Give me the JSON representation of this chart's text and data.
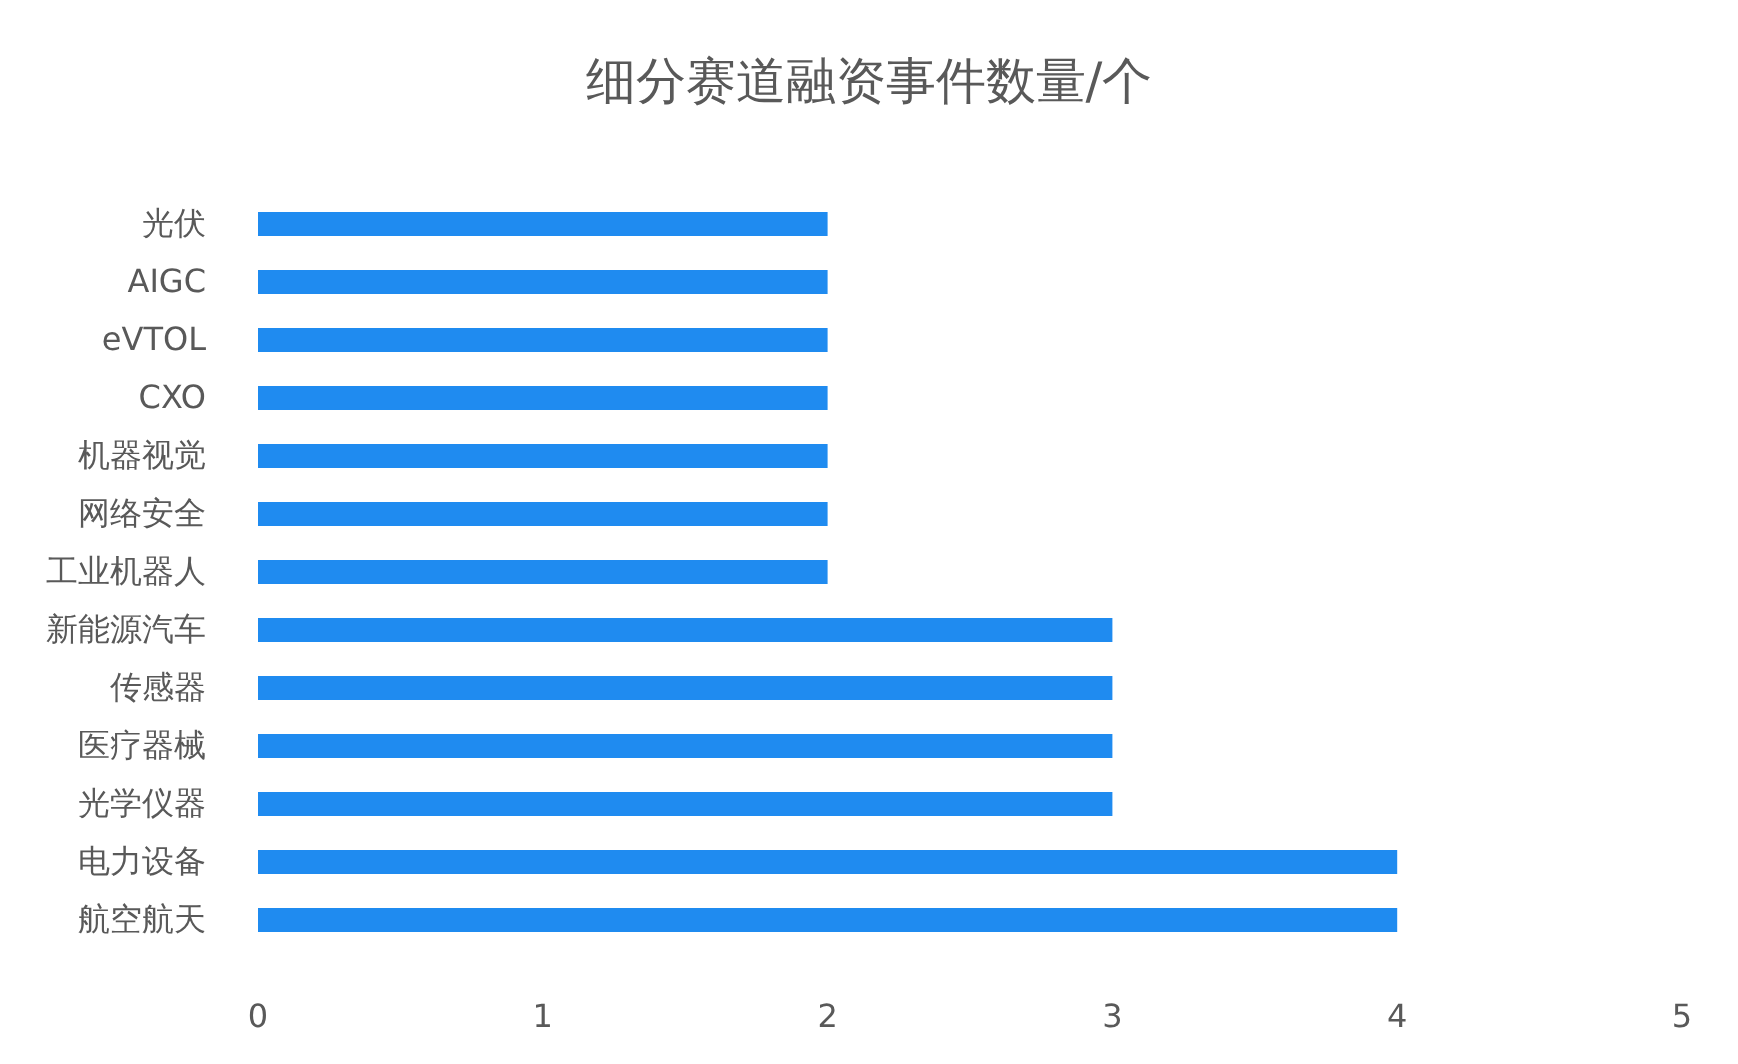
{
  "chart_data": {
    "type": "bar",
    "orientation": "horizontal",
    "title": "细分赛道融资事件数量/个",
    "categories": [
      "光伏",
      "AIGC",
      "eVTOL",
      "CXO",
      "机器视觉",
      "网络安全",
      "工业机器人",
      "新能源汽车",
      "传感器",
      "医疗器械",
      "光学仪器",
      "电力设备",
      "航空航天"
    ],
    "values": [
      2,
      2,
      2,
      2,
      2,
      2,
      2,
      3,
      3,
      3,
      3,
      4,
      4
    ],
    "color": "#1f8bf0",
    "xlim": [
      0,
      5
    ],
    "xticks": [
      0,
      1,
      2,
      3,
      4,
      5
    ]
  }
}
